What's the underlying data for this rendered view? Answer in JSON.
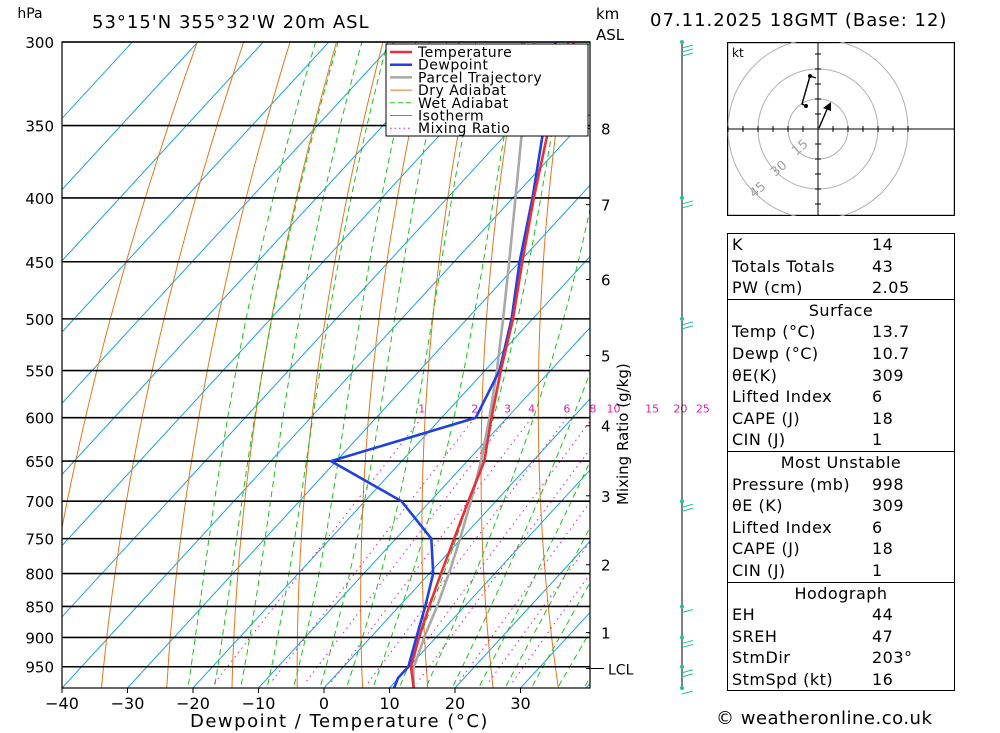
{
  "header": {
    "pressure_unit": "hPa",
    "location": "53°15'N 355°32'W 20m ASL",
    "height_unit": "km",
    "height_ref": "ASL",
    "datetime": "07.11.2025 18GMT (Base: 12)"
  },
  "chart_data": {
    "type": "skew-t log-p",
    "xlabel": "Dewpoint / Temperature (°C)",
    "ylabel": "hPa",
    "mixing_ratio_label": "Mixing Ratio (g/kg)",
    "pressure_levels": [
      300,
      350,
      400,
      450,
      500,
      550,
      600,
      650,
      700,
      750,
      800,
      850,
      900,
      950
    ],
    "pressure_range": [
      300,
      988
    ],
    "temperature_ticks": [
      -40,
      -30,
      -20,
      -10,
      0,
      10,
      20,
      30
    ],
    "height_ticks": [
      {
        "km": "8",
        "p": 352
      },
      {
        "km": "7",
        "p": 405
      },
      {
        "km": "6",
        "p": 465
      },
      {
        "km": "5",
        "p": 535
      },
      {
        "km": "4",
        "p": 609
      },
      {
        "km": "3",
        "p": 693
      },
      {
        "km": "2",
        "p": 787
      },
      {
        "km": "1",
        "p": 892
      }
    ],
    "lcl": {
      "label": "LCL",
      "p": 953
    },
    "mixing_ratio_values": [
      1,
      2,
      3,
      4,
      6,
      8,
      10,
      15,
      20,
      25
    ],
    "legend": [
      "Temperature",
      "Dewpoint",
      "Parcel Trajectory",
      "Dry Adiabat",
      "Wet Adiabat",
      "Isotherm",
      "Mixing Ratio"
    ],
    "series": [
      {
        "name": "Temperature",
        "color": "#e8303a",
        "points": [
          [
            988,
            13.7
          ],
          [
            950,
            10.3
          ],
          [
            900,
            7.4
          ],
          [
            850,
            4.6
          ],
          [
            800,
            1.8
          ],
          [
            750,
            -1.1
          ],
          [
            700,
            -4.2
          ],
          [
            650,
            -7.4
          ],
          [
            600,
            -12.4
          ],
          [
            550,
            -17.6
          ],
          [
            500,
            -23.0
          ],
          [
            450,
            -29.6
          ],
          [
            400,
            -36.8
          ],
          [
            350,
            -44.6
          ],
          [
            300,
            -52.6
          ]
        ]
      },
      {
        "name": "Dewpoint",
        "color": "#2040e0",
        "points": [
          [
            988,
            10.7
          ],
          [
            970,
            9.9
          ],
          [
            950,
            9.9
          ],
          [
            900,
            7.0
          ],
          [
            850,
            4.0
          ],
          [
            800,
            0.6
          ],
          [
            750,
            -4.6
          ],
          [
            700,
            -14.4
          ],
          [
            650,
            -30.8
          ],
          [
            600,
            -14.8
          ],
          [
            550,
            -17.8
          ],
          [
            500,
            -23.2
          ],
          [
            450,
            -30.0
          ],
          [
            400,
            -37.0
          ],
          [
            350,
            -45.4
          ],
          [
            300,
            -55.4
          ]
        ]
      },
      {
        "name": "Parcel Trajectory",
        "color": "#a8a8a8",
        "points": [
          [
            988,
            13.7
          ],
          [
            953,
            10.9
          ],
          [
            900,
            8.2
          ],
          [
            850,
            5.8
          ],
          [
            800,
            3.0
          ],
          [
            750,
            -0.2
          ],
          [
            700,
            -3.8
          ],
          [
            650,
            -7.9
          ],
          [
            600,
            -12.7
          ],
          [
            550,
            -18.2
          ],
          [
            500,
            -24.5
          ],
          [
            450,
            -31.6
          ],
          [
            400,
            -39.6
          ],
          [
            350,
            -48.7
          ],
          [
            300,
            -58.6
          ]
        ]
      }
    ]
  },
  "hodograph": {
    "unit_label": "kt",
    "ring_labels": [
      "15",
      "30",
      "45"
    ]
  },
  "indices": {
    "k": {
      "label": "K",
      "value": "14"
    },
    "totals": {
      "label": "Totals Totals",
      "value": "43"
    },
    "pw": {
      "label": "PW (cm)",
      "value": "2.05"
    }
  },
  "surface": {
    "title": "Surface",
    "rows": [
      {
        "label": "Temp (°C)",
        "value": "13.7"
      },
      {
        "label": "Dewp (°C)",
        "value": "10.7"
      },
      {
        "label": "θE(K)",
        "value": "309"
      },
      {
        "label": "Lifted Index",
        "value": "6"
      },
      {
        "label": "CAPE (J)",
        "value": "18"
      },
      {
        "label": "CIN (J)",
        "value": "1"
      }
    ]
  },
  "most_unstable": {
    "title": "Most Unstable",
    "rows": [
      {
        "label": "Pressure (mb)",
        "value": "998"
      },
      {
        "label": "θE (K)",
        "value": "309"
      },
      {
        "label": "Lifted Index",
        "value": "6"
      },
      {
        "label": "CAPE (J)",
        "value": "18"
      },
      {
        "label": "CIN (J)",
        "value": "1"
      }
    ]
  },
  "hodograph_table": {
    "title": "Hodograph",
    "rows": [
      {
        "label": "EH",
        "value": "44"
      },
      {
        "label": "SREH",
        "value": "47"
      },
      {
        "label": "StmDir",
        "value": "203°"
      },
      {
        "label": "StmSpd (kt)",
        "value": "16"
      }
    ]
  },
  "copyright": "© weatheronline.co.uk",
  "colors": {
    "isotherm": "#20a0e0",
    "dry_adiabat": "#e07820",
    "wet_adiabat": "#20c020",
    "mixing_ratio": "#e020a0",
    "wind_barb": "#20c0a0"
  }
}
